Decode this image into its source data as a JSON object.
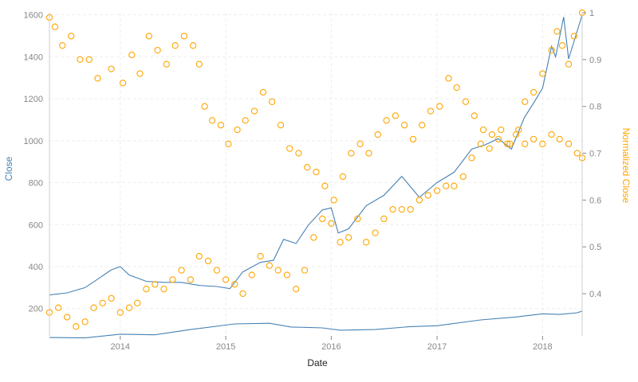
{
  "chart_data": {
    "type": "line",
    "xlabel": "Date",
    "ylabel_left": "Close",
    "ylabel_right": "Normalized Close",
    "x_ticks": [
      "2014",
      "2015",
      "2016",
      "2017",
      "2018"
    ],
    "x_range": [
      "2013-05-01",
      "2018-05-18"
    ],
    "y_left_ticks": [
      200,
      400,
      600,
      800,
      1000,
      1200,
      1400,
      1600
    ],
    "y_left_range": [
      70,
      1610
    ],
    "y_right_ticks": [
      0.4,
      0.5,
      0.6,
      0.7,
      0.8,
      0.9,
      1
    ],
    "y_right_range": [
      0.31,
      1.0
    ],
    "grid": true,
    "colors": {
      "left_series": "#4682b4",
      "right_series": "#ffa500",
      "axis_text": "#888888",
      "grid": "#eeeeee"
    },
    "series": [
      {
        "axis": "left",
        "style": "line",
        "points": [
          [
            "2013-05-01",
            265
          ],
          [
            "2013-07-01",
            275
          ],
          [
            "2013-09-01",
            300
          ],
          [
            "2013-10-15",
            340
          ],
          [
            "2013-12-01",
            385
          ],
          [
            "2014-01-01",
            400
          ],
          [
            "2014-02-01",
            360
          ],
          [
            "2014-04-01",
            330
          ],
          [
            "2014-06-01",
            325
          ],
          [
            "2014-08-01",
            325
          ],
          [
            "2014-10-01",
            310
          ],
          [
            "2014-12-01",
            305
          ],
          [
            "2015-01-15",
            295
          ],
          [
            "2015-03-01",
            375
          ],
          [
            "2015-05-01",
            420
          ],
          [
            "2015-06-15",
            430
          ],
          [
            "2015-07-20",
            530
          ],
          [
            "2015-09-01",
            510
          ],
          [
            "2015-10-15",
            600
          ],
          [
            "2015-12-01",
            670
          ],
          [
            "2016-01-01",
            680
          ],
          [
            "2016-01-25",
            560
          ],
          [
            "2016-03-01",
            580
          ],
          [
            "2016-05-01",
            690
          ],
          [
            "2016-07-01",
            740
          ],
          [
            "2016-09-01",
            830
          ],
          [
            "2016-11-01",
            730
          ],
          [
            "2017-01-01",
            800
          ],
          [
            "2017-03-01",
            850
          ],
          [
            "2017-05-01",
            960
          ],
          [
            "2017-06-15",
            980
          ],
          [
            "2017-08-01",
            1010
          ],
          [
            "2017-09-15",
            960
          ],
          [
            "2017-10-30",
            1110
          ],
          [
            "2017-12-01",
            1180
          ],
          [
            "2018-01-01",
            1250
          ],
          [
            "2018-02-01",
            1450
          ],
          [
            "2018-02-15",
            1400
          ],
          [
            "2018-03-15",
            1590
          ],
          [
            "2018-04-01",
            1390
          ],
          [
            "2018-05-18",
            1600
          ]
        ]
      },
      {
        "axis": "left",
        "style": "line",
        "points": [
          [
            "2013-05-01",
            62
          ],
          [
            "2013-09-01",
            60
          ],
          [
            "2014-01-01",
            78
          ],
          [
            "2014-05-01",
            75
          ],
          [
            "2014-09-01",
            100
          ],
          [
            "2015-02-01",
            127
          ],
          [
            "2015-06-01",
            130
          ],
          [
            "2015-08-15",
            112
          ],
          [
            "2015-12-01",
            108
          ],
          [
            "2016-02-01",
            97
          ],
          [
            "2016-06-01",
            100
          ],
          [
            "2016-10-01",
            114
          ],
          [
            "2017-01-01",
            118
          ],
          [
            "2017-06-01",
            146
          ],
          [
            "2017-10-01",
            160
          ],
          [
            "2018-01-01",
            175
          ],
          [
            "2018-03-01",
            172
          ],
          [
            "2018-05-01",
            180
          ],
          [
            "2018-05-18",
            188
          ]
        ]
      },
      {
        "axis": "right",
        "style": "markers",
        "points": [
          [
            "2013-05-01",
            0.99
          ],
          [
            "2013-05-20",
            0.97
          ],
          [
            "2013-06-15",
            0.93
          ],
          [
            "2013-07-15",
            0.95
          ],
          [
            "2013-08-15",
            0.9
          ],
          [
            "2013-09-15",
            0.9
          ],
          [
            "2013-10-15",
            0.86
          ],
          [
            "2013-12-01",
            0.88
          ],
          [
            "2014-01-10",
            0.85
          ],
          [
            "2014-02-10",
            0.91
          ],
          [
            "2014-03-10",
            0.87
          ],
          [
            "2014-04-10",
            0.95
          ],
          [
            "2014-05-10",
            0.92
          ],
          [
            "2014-06-10",
            0.89
          ],
          [
            "2014-07-10",
            0.93
          ],
          [
            "2014-08-10",
            0.95
          ],
          [
            "2014-09-10",
            0.93
          ],
          [
            "2014-10-01",
            0.89
          ],
          [
            "2014-10-20",
            0.8
          ],
          [
            "2014-11-15",
            0.77
          ],
          [
            "2014-12-15",
            0.76
          ],
          [
            "2015-01-10",
            0.72
          ],
          [
            "2015-02-10",
            0.75
          ],
          [
            "2015-03-10",
            0.77
          ],
          [
            "2015-04-10",
            0.79
          ],
          [
            "2015-05-10",
            0.83
          ],
          [
            "2015-06-10",
            0.81
          ],
          [
            "2015-07-10",
            0.76
          ],
          [
            "2015-08-10",
            0.71
          ],
          [
            "2015-09-10",
            0.7
          ],
          [
            "2015-10-10",
            0.67
          ],
          [
            "2015-11-10",
            0.66
          ],
          [
            "2015-12-10",
            0.63
          ],
          [
            "2016-01-10",
            0.6
          ],
          [
            "2016-02-10",
            0.65
          ],
          [
            "2016-03-10",
            0.7
          ],
          [
            "2016-04-10",
            0.72
          ],
          [
            "2016-05-10",
            0.7
          ],
          [
            "2016-06-10",
            0.74
          ],
          [
            "2016-07-10",
            0.77
          ],
          [
            "2016-08-10",
            0.78
          ],
          [
            "2016-09-10",
            0.76
          ],
          [
            "2016-10-10",
            0.73
          ],
          [
            "2016-11-10",
            0.76
          ],
          [
            "2016-12-10",
            0.79
          ],
          [
            "2017-01-10",
            0.8
          ],
          [
            "2017-02-10",
            0.86
          ],
          [
            "2017-03-10",
            0.84
          ],
          [
            "2017-04-10",
            0.81
          ],
          [
            "2017-05-10",
            0.78
          ],
          [
            "2017-06-10",
            0.75
          ],
          [
            "2017-07-10",
            0.74
          ],
          [
            "2017-08-10",
            0.75
          ],
          [
            "2017-09-10",
            0.72
          ],
          [
            "2017-10-10",
            0.75
          ],
          [
            "2017-11-01",
            0.81
          ],
          [
            "2017-12-01",
            0.83
          ],
          [
            "2018-01-01",
            0.87
          ],
          [
            "2018-02-01",
            0.92
          ],
          [
            "2018-02-20",
            0.96
          ],
          [
            "2018-03-10",
            0.93
          ],
          [
            "2018-04-01",
            0.89
          ],
          [
            "2018-04-20",
            0.95
          ],
          [
            "2018-05-18",
            1.0
          ]
        ]
      },
      {
        "axis": "right",
        "style": "markers",
        "points": [
          [
            "2013-05-01",
            0.36
          ],
          [
            "2013-06-01",
            0.37
          ],
          [
            "2013-07-01",
            0.35
          ],
          [
            "2013-08-01",
            0.33
          ],
          [
            "2013-09-01",
            0.34
          ],
          [
            "2013-10-01",
            0.37
          ],
          [
            "2013-11-01",
            0.38
          ],
          [
            "2013-12-01",
            0.39
          ],
          [
            "2014-01-01",
            0.36
          ],
          [
            "2014-02-01",
            0.37
          ],
          [
            "2014-03-01",
            0.38
          ],
          [
            "2014-04-01",
            0.41
          ],
          [
            "2014-05-01",
            0.42
          ],
          [
            "2014-06-01",
            0.41
          ],
          [
            "2014-07-01",
            0.43
          ],
          [
            "2014-08-01",
            0.45
          ],
          [
            "2014-09-01",
            0.43
          ],
          [
            "2014-10-01",
            0.48
          ],
          [
            "2014-11-01",
            0.47
          ],
          [
            "2014-12-01",
            0.45
          ],
          [
            "2015-01-01",
            0.43
          ],
          [
            "2015-02-01",
            0.42
          ],
          [
            "2015-03-01",
            0.4
          ],
          [
            "2015-04-01",
            0.44
          ],
          [
            "2015-05-01",
            0.48
          ],
          [
            "2015-06-01",
            0.46
          ],
          [
            "2015-07-01",
            0.45
          ],
          [
            "2015-08-01",
            0.44
          ],
          [
            "2015-09-01",
            0.41
          ],
          [
            "2015-10-01",
            0.45
          ],
          [
            "2015-11-01",
            0.52
          ],
          [
            "2015-12-01",
            0.56
          ],
          [
            "2016-01-01",
            0.55
          ],
          [
            "2016-02-01",
            0.51
          ],
          [
            "2016-03-01",
            0.52
          ],
          [
            "2016-04-01",
            0.56
          ],
          [
            "2016-05-01",
            0.51
          ],
          [
            "2016-06-01",
            0.53
          ],
          [
            "2016-07-01",
            0.56
          ],
          [
            "2016-08-01",
            0.58
          ],
          [
            "2016-09-01",
            0.58
          ],
          [
            "2016-10-01",
            0.58
          ],
          [
            "2016-11-01",
            0.6
          ],
          [
            "2016-12-01",
            0.61
          ],
          [
            "2017-01-01",
            0.62
          ],
          [
            "2017-02-01",
            0.63
          ],
          [
            "2017-03-01",
            0.63
          ],
          [
            "2017-04-01",
            0.65
          ],
          [
            "2017-05-01",
            0.69
          ],
          [
            "2017-06-01",
            0.72
          ],
          [
            "2017-07-01",
            0.71
          ],
          [
            "2017-08-01",
            0.73
          ],
          [
            "2017-09-01",
            0.72
          ],
          [
            "2017-10-01",
            0.74
          ],
          [
            "2017-11-01",
            0.72
          ],
          [
            "2017-12-01",
            0.73
          ],
          [
            "2018-01-01",
            0.72
          ],
          [
            "2018-02-01",
            0.74
          ],
          [
            "2018-03-01",
            0.73
          ],
          [
            "2018-04-01",
            0.72
          ],
          [
            "2018-05-01",
            0.7
          ],
          [
            "2018-05-18",
            0.69
          ]
        ]
      }
    ]
  }
}
